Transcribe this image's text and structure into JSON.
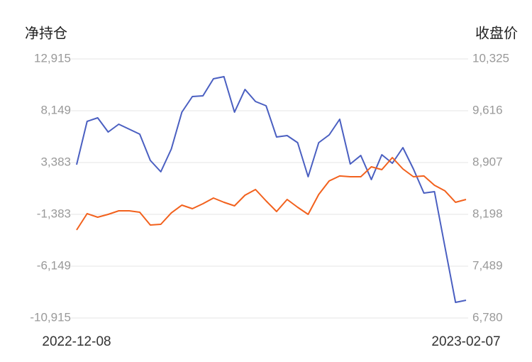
{
  "chart_data": {
    "type": "line",
    "y_title": "净持仓",
    "y2_title": "收盘价",
    "x": [
      "2022-12-08",
      null,
      null,
      null,
      null,
      null,
      null,
      null,
      null,
      null,
      null,
      null,
      null,
      null,
      null,
      null,
      null,
      null,
      null,
      null,
      null,
      null,
      null,
      null,
      null,
      null,
      null,
      null,
      null,
      null,
      null,
      null,
      null,
      null,
      null,
      null,
      null,
      "2023-02-07"
    ],
    "series": [
      {
        "name": "净持仓",
        "color": "#4a5fc1",
        "axis": "y",
        "values": [
          3187,
          7169,
          7496,
          6190,
          6908,
          6451,
          5994,
          3578,
          2534,
          4623,
          8018,
          9455,
          9520,
          11087,
          11283,
          8018,
          10108,
          8998,
          8606,
          5733,
          5864,
          5211,
          2077,
          5211,
          5929,
          7365,
          3252,
          4035,
          1815,
          4100,
          3317,
          4754,
          2795,
          575,
          706,
          -4387,
          -9480,
          -9284
        ]
      },
      {
        "name": "收盘价",
        "color": "#f2611d",
        "axis": "y2",
        "values": [
          7984,
          8208,
          8159,
          8198,
          8247,
          8247,
          8227,
          8052,
          8062,
          8218,
          8324,
          8276,
          8344,
          8421,
          8363,
          8315,
          8460,
          8538,
          8383,
          8237,
          8402,
          8295,
          8198,
          8470,
          8655,
          8723,
          8713,
          8713,
          8849,
          8810,
          8975,
          8820,
          8713,
          8723,
          8596,
          8519,
          8363,
          8402
        ]
      }
    ],
    "ylim": [
      -10915,
      12915
    ],
    "yticks": [
      {
        "value": 12915,
        "label": "12,915"
      },
      {
        "value": 8149,
        "label": "8,149"
      },
      {
        "value": 3383,
        "label": "3,383"
      },
      {
        "value": -1383,
        "label": "-1,383"
      },
      {
        "value": -6149,
        "label": "-6,149"
      },
      {
        "value": -10915,
        "label": "-10,915"
      }
    ],
    "y2lim": [
      6780,
      10325
    ],
    "y2ticks": [
      {
        "value": 10325,
        "label": "10,325"
      },
      {
        "value": 9616,
        "label": "9,616"
      },
      {
        "value": 8907,
        "label": "8,907"
      },
      {
        "value": 8198,
        "label": "8,198"
      },
      {
        "value": 7489,
        "label": "7,489"
      },
      {
        "value": 6780,
        "label": "6,780"
      }
    ],
    "grid": true
  }
}
